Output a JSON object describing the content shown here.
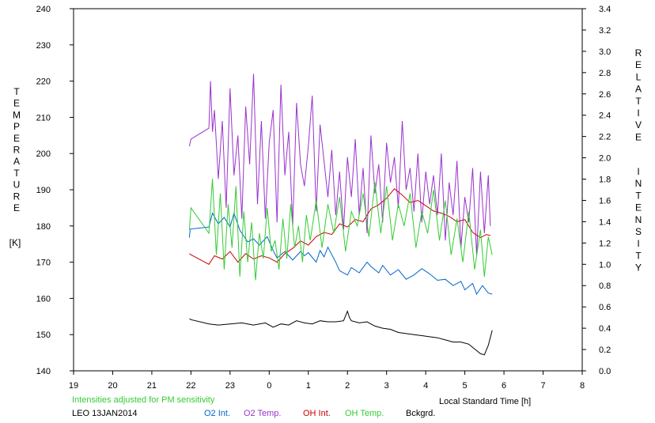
{
  "chart_data": {
    "type": "line",
    "title": "",
    "xlabel": "Local Standard Time [h]",
    "y_left_label": "TEMPERATURE [K]",
    "y_right_label": "RELATIVE INTENSITY",
    "y_left_label_letters": [
      "T",
      "E",
      "M",
      "P",
      "E",
      "R",
      "A",
      "T",
      "U",
      "R",
      "E"
    ],
    "y_left_label_unit": "[K]",
    "y_right_label_word1": [
      "R",
      "E",
      "L",
      "A",
      "T",
      "I",
      "V",
      "E"
    ],
    "y_right_label_word2": [
      "I",
      "N",
      "T",
      "E",
      "N",
      "S",
      "I",
      "T",
      "Y"
    ],
    "x_ticks": [
      "19",
      "20",
      "21",
      "22",
      "23",
      "0",
      "1",
      "2",
      "3",
      "4",
      "5",
      "6",
      "7",
      "8"
    ],
    "xlim": [
      19,
      32
    ],
    "ylim_left": [
      140,
      240
    ],
    "ylim_right": [
      0.0,
      3.4
    ],
    "y_left_ticks": [
      "240",
      "230",
      "220",
      "210",
      "200",
      "190",
      "180",
      "170",
      "160",
      "150",
      "140"
    ],
    "y_right_ticks": [
      "3.4",
      "3.2",
      "3.0",
      "2.8",
      "2.6",
      "2.4",
      "2.2",
      "2.0",
      "1.8",
      "1.6",
      "1.4",
      "1.2",
      "1.0",
      "0.8",
      "0.6",
      "0.4",
      "0.2",
      "0.0"
    ],
    "note": "Intensities adjusted for PM sensitivity",
    "station_date": "LEO 13JAN2014",
    "legend_position": "bottom",
    "series": [
      {
        "name": "O2 Int.",
        "axis": "right",
        "color": "#0066cc",
        "x": [
          21.96,
          21.98,
          22.46,
          22.55,
          22.7,
          22.85,
          23.0,
          23.1,
          23.25,
          23.45,
          23.6,
          23.75,
          23.95,
          24.1,
          24.2,
          24.4,
          24.6,
          24.8,
          24.9,
          25.0,
          25.2,
          25.3,
          25.4,
          25.5,
          25.7,
          25.8,
          26.0,
          26.1,
          26.3,
          26.5,
          26.6,
          26.8,
          26.9,
          27.1,
          27.3,
          27.5,
          27.7,
          27.9,
          28.1,
          28.3,
          28.5,
          28.7,
          28.9,
          29.0,
          29.2,
          29.3,
          29.45,
          29.6,
          29.7
        ],
        "values": [
          1.25,
          1.33,
          1.35,
          1.48,
          1.38,
          1.44,
          1.35,
          1.48,
          1.32,
          1.21,
          1.24,
          1.18,
          1.26,
          1.13,
          1.06,
          1.12,
          1.04,
          1.12,
          1.08,
          1.11,
          1.02,
          1.13,
          1.07,
          1.16,
          1.02,
          0.94,
          0.9,
          0.97,
          0.92,
          1.02,
          0.98,
          0.92,
          0.99,
          0.9,
          0.95,
          0.86,
          0.9,
          0.96,
          0.91,
          0.85,
          0.86,
          0.8,
          0.84,
          0.76,
          0.82,
          0.72,
          0.8,
          0.73,
          0.72
        ]
      },
      {
        "name": "O2 Temp.",
        "axis": "left",
        "color": "#9933cc",
        "x": [
          21.96,
          22.0,
          22.46,
          22.5,
          22.55,
          22.6,
          22.7,
          22.8,
          22.9,
          23.0,
          23.1,
          23.2,
          23.3,
          23.4,
          23.5,
          23.6,
          23.7,
          23.8,
          23.9,
          24.0,
          24.1,
          24.2,
          24.3,
          24.4,
          24.5,
          24.6,
          24.7,
          24.8,
          24.9,
          25.0,
          25.1,
          25.2,
          25.3,
          25.4,
          25.5,
          25.6,
          25.7,
          25.8,
          25.9,
          26.0,
          26.1,
          26.2,
          26.3,
          26.4,
          26.5,
          26.6,
          26.7,
          26.8,
          26.9,
          27.0,
          27.1,
          27.2,
          27.3,
          27.4,
          27.5,
          27.6,
          27.7,
          27.8,
          27.9,
          28.0,
          28.1,
          28.2,
          28.3,
          28.4,
          28.5,
          28.6,
          28.7,
          28.8,
          28.9,
          29.0,
          29.1,
          29.2,
          29.3,
          29.4,
          29.5,
          29.55,
          29.6,
          29.65
        ],
        "values": [
          202,
          204,
          207,
          220,
          206,
          212,
          193,
          209,
          185,
          218,
          194,
          205,
          182,
          213,
          197,
          222,
          186,
          209,
          182,
          203,
          212,
          181,
          219,
          194,
          206,
          180,
          214,
          197,
          191,
          202,
          216,
          184,
          208,
          198,
          188,
          201,
          183,
          195,
          179,
          199,
          188,
          204,
          183,
          196,
          178,
          205,
          189,
          197,
          181,
          203,
          192,
          199,
          185,
          209,
          190,
          196,
          184,
          200,
          181,
          195,
          186,
          194,
          183,
          200,
          176,
          192,
          183,
          198,
          174,
          188,
          181,
          196,
          172,
          195,
          178,
          186,
          194,
          180
        ]
      },
      {
        "name": "OH Int.",
        "axis": "right",
        "color": "#cc0000",
        "x": [
          21.96,
          22.0,
          22.46,
          22.6,
          22.8,
          23.0,
          23.2,
          23.4,
          23.6,
          23.8,
          24.0,
          24.2,
          24.4,
          24.6,
          24.8,
          25.0,
          25.2,
          25.4,
          25.6,
          25.8,
          26.0,
          26.2,
          26.4,
          26.6,
          26.8,
          27.0,
          27.2,
          27.4,
          27.6,
          27.8,
          28.0,
          28.2,
          28.4,
          28.6,
          28.8,
          29.0,
          29.2,
          29.4,
          29.55,
          29.65
        ],
        "values": [
          1.1,
          1.09,
          1.0,
          1.08,
          1.05,
          1.12,
          1.02,
          1.1,
          1.05,
          1.08,
          1.06,
          1.02,
          1.1,
          1.15,
          1.22,
          1.18,
          1.26,
          1.3,
          1.28,
          1.38,
          1.35,
          1.42,
          1.4,
          1.52,
          1.56,
          1.62,
          1.71,
          1.65,
          1.58,
          1.6,
          1.55,
          1.5,
          1.48,
          1.45,
          1.4,
          1.42,
          1.3,
          1.25,
          1.28,
          1.27
        ]
      },
      {
        "name": "OH Temp.",
        "axis": "left",
        "color": "#33cc33",
        "x": [
          21.96,
          22.0,
          22.46,
          22.55,
          22.65,
          22.75,
          22.85,
          22.95,
          23.05,
          23.15,
          23.25,
          23.35,
          23.45,
          23.55,
          23.65,
          23.75,
          23.85,
          23.95,
          24.05,
          24.15,
          24.25,
          24.35,
          24.45,
          24.55,
          24.65,
          24.75,
          24.85,
          24.95,
          25.05,
          25.2,
          25.35,
          25.5,
          25.65,
          25.8,
          25.95,
          26.1,
          26.25,
          26.4,
          26.55,
          26.7,
          26.85,
          27.0,
          27.15,
          27.3,
          27.45,
          27.6,
          27.75,
          27.9,
          28.05,
          28.2,
          28.35,
          28.5,
          28.65,
          28.8,
          28.95,
          29.1,
          29.25,
          29.4,
          29.5,
          29.6,
          29.7
        ],
        "values": [
          179,
          185,
          178,
          193,
          172,
          189,
          168,
          186,
          174,
          191,
          166,
          184,
          170,
          181,
          165,
          178,
          171,
          185,
          173,
          176,
          168,
          182,
          171,
          186,
          174,
          180,
          170,
          183,
          176,
          187,
          174,
          186,
          178,
          188,
          173,
          184,
          180,
          189,
          177,
          192,
          178,
          191,
          176,
          186,
          180,
          189,
          174,
          184,
          178,
          190,
          176,
          187,
          172,
          182,
          170,
          184,
          168,
          179,
          166,
          177,
          172
        ]
      },
      {
        "name": "Bckgrd.",
        "axis": "right",
        "color": "#000000",
        "x": [
          21.96,
          22.0,
          22.46,
          22.7,
          23.0,
          23.3,
          23.6,
          23.9,
          24.1,
          24.3,
          24.5,
          24.7,
          24.9,
          25.1,
          25.3,
          25.5,
          25.7,
          25.9,
          26.0,
          26.05,
          26.1,
          26.3,
          26.5,
          26.7,
          26.9,
          27.1,
          27.3,
          27.5,
          27.7,
          27.9,
          28.1,
          28.3,
          28.5,
          28.7,
          28.9,
          29.1,
          29.2,
          29.3,
          29.4,
          29.5,
          29.6,
          29.7
        ],
        "values": [
          0.49,
          0.48,
          0.44,
          0.43,
          0.44,
          0.45,
          0.43,
          0.45,
          0.41,
          0.44,
          0.43,
          0.47,
          0.45,
          0.44,
          0.47,
          0.46,
          0.46,
          0.47,
          0.56,
          0.5,
          0.47,
          0.45,
          0.46,
          0.42,
          0.4,
          0.39,
          0.36,
          0.35,
          0.34,
          0.33,
          0.32,
          0.31,
          0.29,
          0.27,
          0.27,
          0.25,
          0.22,
          0.19,
          0.16,
          0.15,
          0.24,
          0.38
        ]
      }
    ]
  }
}
